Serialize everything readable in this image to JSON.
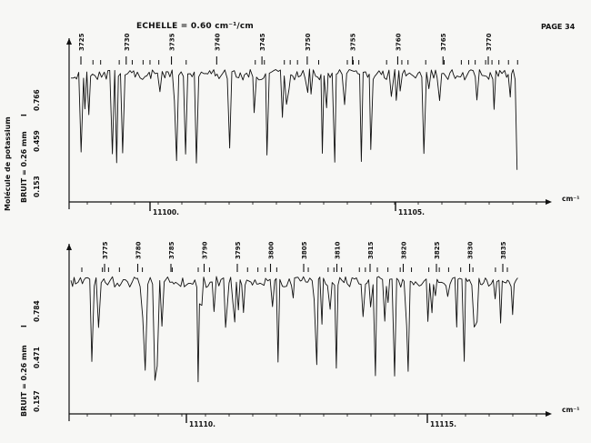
{
  "header": {
    "scale_label": "ECHELLE = 0.60 cm⁻¹/cm",
    "page_label": "PAGE 34"
  },
  "side_label_molecule": "Molécule de potassium",
  "chart_data": [
    {
      "type": "line",
      "x_unit": "cm⁻¹",
      "noise_label": "BRUIT = 0.26 mm",
      "intensity_label": "I",
      "yticks": [
        "0.153",
        "0.459",
        "0.766"
      ],
      "line_numbers": [
        "3725",
        "3730",
        "3735",
        "3740",
        "3745",
        "3750",
        "3755",
        "3760",
        "3765",
        "3770"
      ],
      "freq_ticks": [
        "11100.",
        "11105."
      ],
      "seed": 7
    },
    {
      "type": "line",
      "x_unit": "cm⁻¹",
      "noise_label": "BRUIT = 0.26 mm",
      "intensity_label": "I",
      "yticks": [
        "0.157",
        "0.471",
        "0.784"
      ],
      "line_numbers": [
        "3775",
        "3780",
        "3785",
        "3790",
        "3795",
        "3800",
        "3805",
        "3810",
        "3815",
        "3820",
        "3825",
        "3830",
        "3835"
      ],
      "freq_ticks": [
        "11110.",
        "11115."
      ],
      "seed": 19
    }
  ]
}
